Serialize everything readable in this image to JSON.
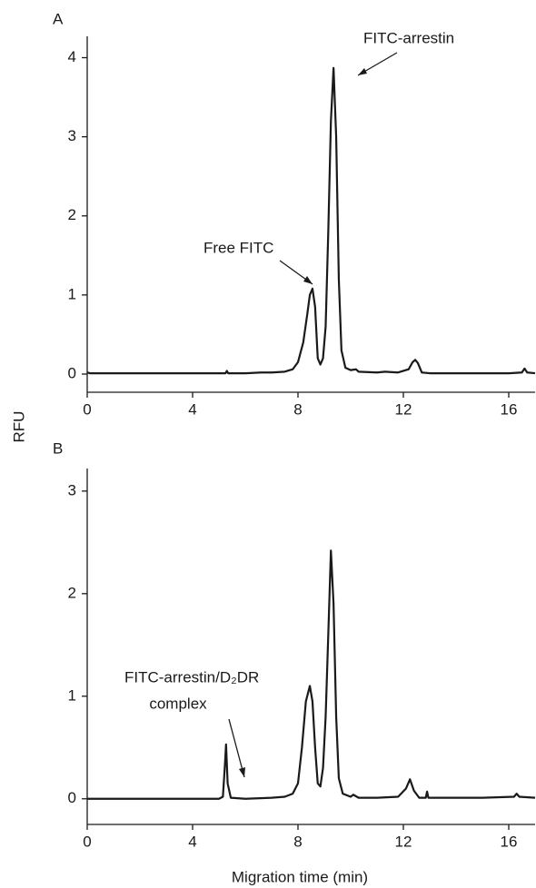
{
  "panel_labels": [
    "A",
    "B"
  ],
  "y_label": "RFU",
  "x_label": "Migration time (min)",
  "chart_data": [
    {
      "type": "line",
      "color": "#1a1a1a",
      "annotations": [
        {
          "text": "FITC-arrestin"
        },
        {
          "text": "Free FITC"
        }
      ],
      "x": [
        0,
        0.1,
        1,
        2,
        3,
        4,
        5,
        5.25,
        5.3,
        5.35,
        6,
        6.6,
        7,
        7.5,
        7.8,
        8.0,
        8.2,
        8.35,
        8.45,
        8.55,
        8.65,
        8.75,
        8.85,
        8.95,
        9.05,
        9.15,
        9.25,
        9.35,
        9.45,
        9.55,
        9.65,
        9.8,
        10,
        10.2,
        10.3,
        11,
        11.3,
        11.8,
        12.2,
        12.35,
        12.45,
        12.55,
        12.7,
        13,
        14,
        15,
        16,
        16.5,
        16.6,
        16.7,
        17
      ],
      "values": [
        0.02,
        0.01,
        0.01,
        0.01,
        0.01,
        0.01,
        0.01,
        0.01,
        0.04,
        0.01,
        0.01,
        0.02,
        0.02,
        0.03,
        0.06,
        0.15,
        0.4,
        0.75,
        1.0,
        1.08,
        0.85,
        0.2,
        0.12,
        0.2,
        0.6,
        1.8,
        3.2,
        3.87,
        3.0,
        1.2,
        0.3,
        0.08,
        0.05,
        0.06,
        0.03,
        0.02,
        0.03,
        0.02,
        0.06,
        0.15,
        0.18,
        0.14,
        0.02,
        0.01,
        0.01,
        0.01,
        0.01,
        0.02,
        0.07,
        0.02,
        0.01
      ],
      "xlim": [
        0,
        17
      ],
      "xticks": [
        0,
        4,
        8,
        12,
        16
      ],
      "ylim": [
        -0.23,
        4.27
      ],
      "yticks": [
        0,
        1,
        2,
        3,
        4
      ]
    },
    {
      "type": "line",
      "color": "#1a1a1a",
      "annotations": [
        {
          "text": [
            "FITC-arrestin/D₂DR",
            "complex"
          ]
        }
      ],
      "x": [
        0,
        1,
        2,
        3,
        4,
        5,
        5.15,
        5.22,
        5.27,
        5.33,
        5.45,
        6,
        7,
        7.5,
        7.8,
        8.0,
        8.15,
        8.3,
        8.45,
        8.55,
        8.65,
        8.75,
        8.85,
        8.95,
        9.05,
        9.15,
        9.25,
        9.35,
        9.45,
        9.55,
        9.7,
        10,
        10.1,
        10.3,
        11,
        11.8,
        12.1,
        12.25,
        12.4,
        12.6,
        12.85,
        12.9,
        12.95,
        13.5,
        15,
        16.2,
        16.3,
        16.4,
        17
      ],
      "values": [
        0,
        0,
        0,
        0,
        0,
        0,
        0.02,
        0.3,
        0.53,
        0.15,
        0.01,
        0,
        0.01,
        0.02,
        0.05,
        0.15,
        0.5,
        0.95,
        1.1,
        0.95,
        0.5,
        0.15,
        0.12,
        0.3,
        0.8,
        1.6,
        2.42,
        1.9,
        0.8,
        0.2,
        0.05,
        0.02,
        0.04,
        0.01,
        0.01,
        0.02,
        0.1,
        0.19,
        0.08,
        0.01,
        0.01,
        0.07,
        0.01,
        0.01,
        0.01,
        0.02,
        0.05,
        0.02,
        0.01
      ],
      "xlim": [
        0,
        17
      ],
      "xticks": [
        0,
        4,
        8,
        12,
        16
      ],
      "ylim": [
        -0.25,
        3.22
      ],
      "yticks": [
        0,
        1,
        2,
        3
      ]
    }
  ]
}
